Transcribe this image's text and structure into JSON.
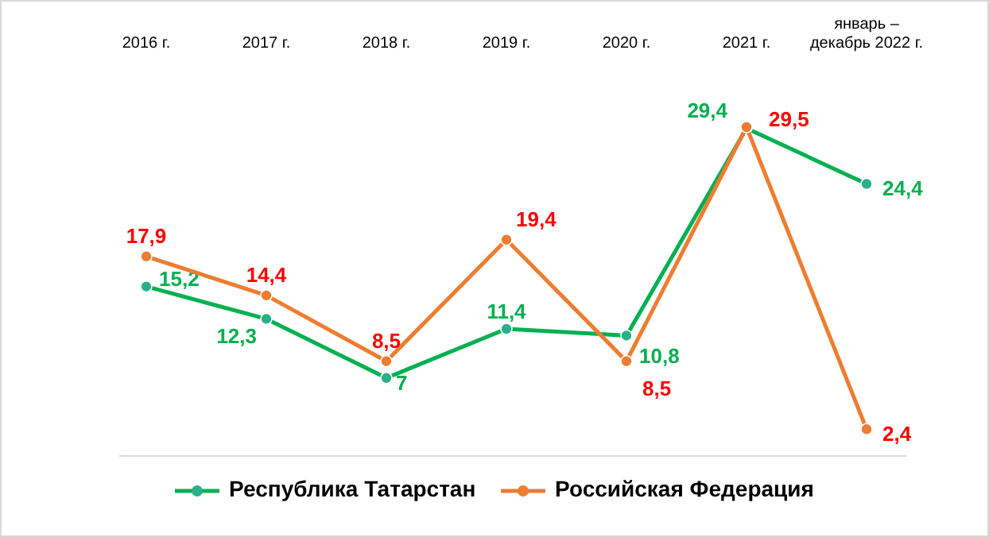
{
  "chart_data": {
    "type": "line",
    "categories": [
      "2016 г.",
      "2017 г.",
      "2018 г.",
      "2019 г.",
      "2020 г.",
      "2021 г.",
      "январь –\nдекабрь 2022 г."
    ],
    "series": [
      {
        "name": "Республика Татарстан",
        "color": "#00b050",
        "values": [
          15.2,
          12.3,
          7,
          11.4,
          10.8,
          29.4,
          24.4
        ],
        "value_labels": [
          "15,2",
          "12,3",
          "7",
          "11,4",
          "10,8",
          "29,4",
          "24,4"
        ]
      },
      {
        "name": "Российская Федерация",
        "color": "#ed7d31",
        "values": [
          17.9,
          14.4,
          8.5,
          19.4,
          8.5,
          29.5,
          2.4
        ],
        "value_labels": [
          "17,9",
          "14,4",
          "8,5",
          "19,4",
          "8,5",
          "29,5",
          "2,4"
        ]
      }
    ],
    "marker": "circle",
    "legend": "bottom",
    "grid": false
  }
}
